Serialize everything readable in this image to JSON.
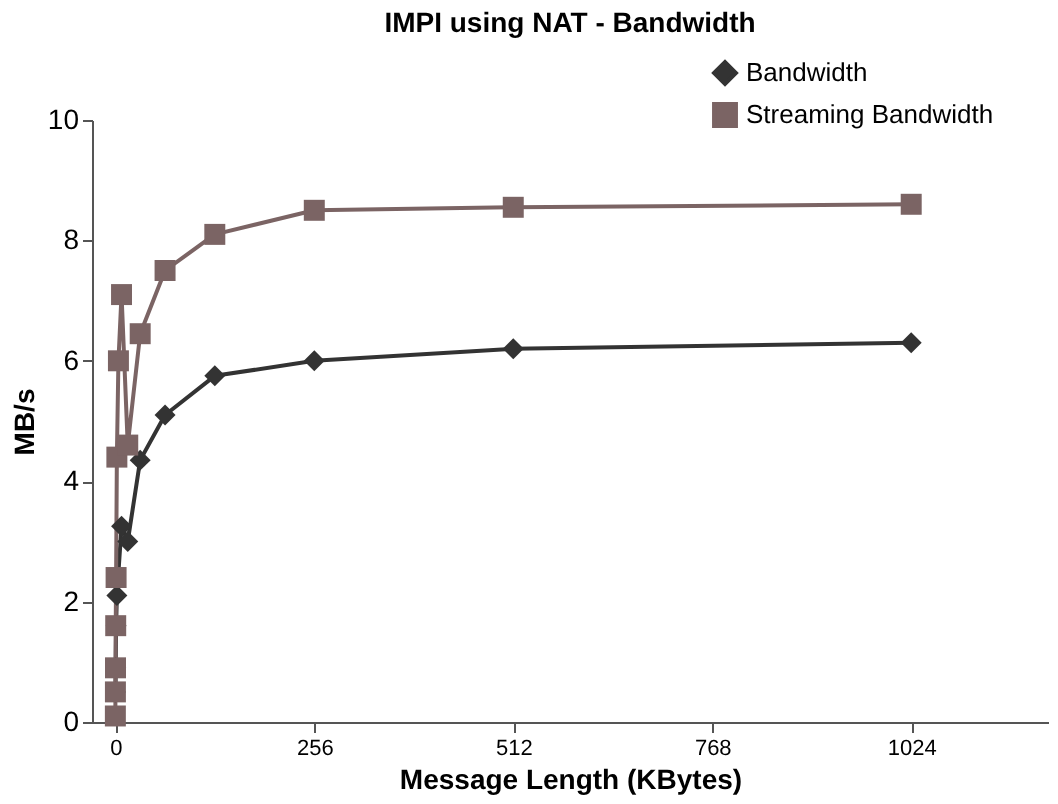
{
  "chart_data": {
    "type": "line",
    "title": "IMPI using NAT - Bandwidth",
    "xlabel": "Message Length (KBytes)",
    "ylabel": "MB/s",
    "xlim": [
      -30,
      1200
    ],
    "xticks": [
      0,
      256,
      512,
      768,
      1024
    ],
    "ylim": [
      0,
      10
    ],
    "yticks": [
      0,
      2,
      4,
      6,
      8,
      10
    ],
    "grid": false,
    "legend": "top right",
    "series": [
      {
        "name": "Bandwidth",
        "color": "#333333",
        "marker": "diamond",
        "x": [
          0.25,
          0.5,
          1,
          2,
          8,
          16,
          32,
          64,
          128,
          256,
          512,
          1024
        ],
        "values": [
          0.5,
          0.9,
          1.6,
          2.1,
          3.25,
          3.0,
          4.35,
          5.1,
          5.75,
          6.0,
          6.2,
          6.3
        ]
      },
      {
        "name": "Streaming Bandwidth",
        "color": "#7b6464",
        "marker": "square",
        "x": [
          0.0625,
          0.125,
          0.25,
          0.5,
          1,
          2,
          4,
          8,
          16,
          32,
          64,
          128,
          256,
          512,
          1024
        ],
        "values": [
          0.1,
          0.5,
          0.9,
          1.6,
          2.4,
          4.4,
          6.0,
          7.1,
          4.6,
          6.45,
          7.5,
          8.1,
          8.5,
          8.55,
          8.6
        ]
      }
    ]
  }
}
